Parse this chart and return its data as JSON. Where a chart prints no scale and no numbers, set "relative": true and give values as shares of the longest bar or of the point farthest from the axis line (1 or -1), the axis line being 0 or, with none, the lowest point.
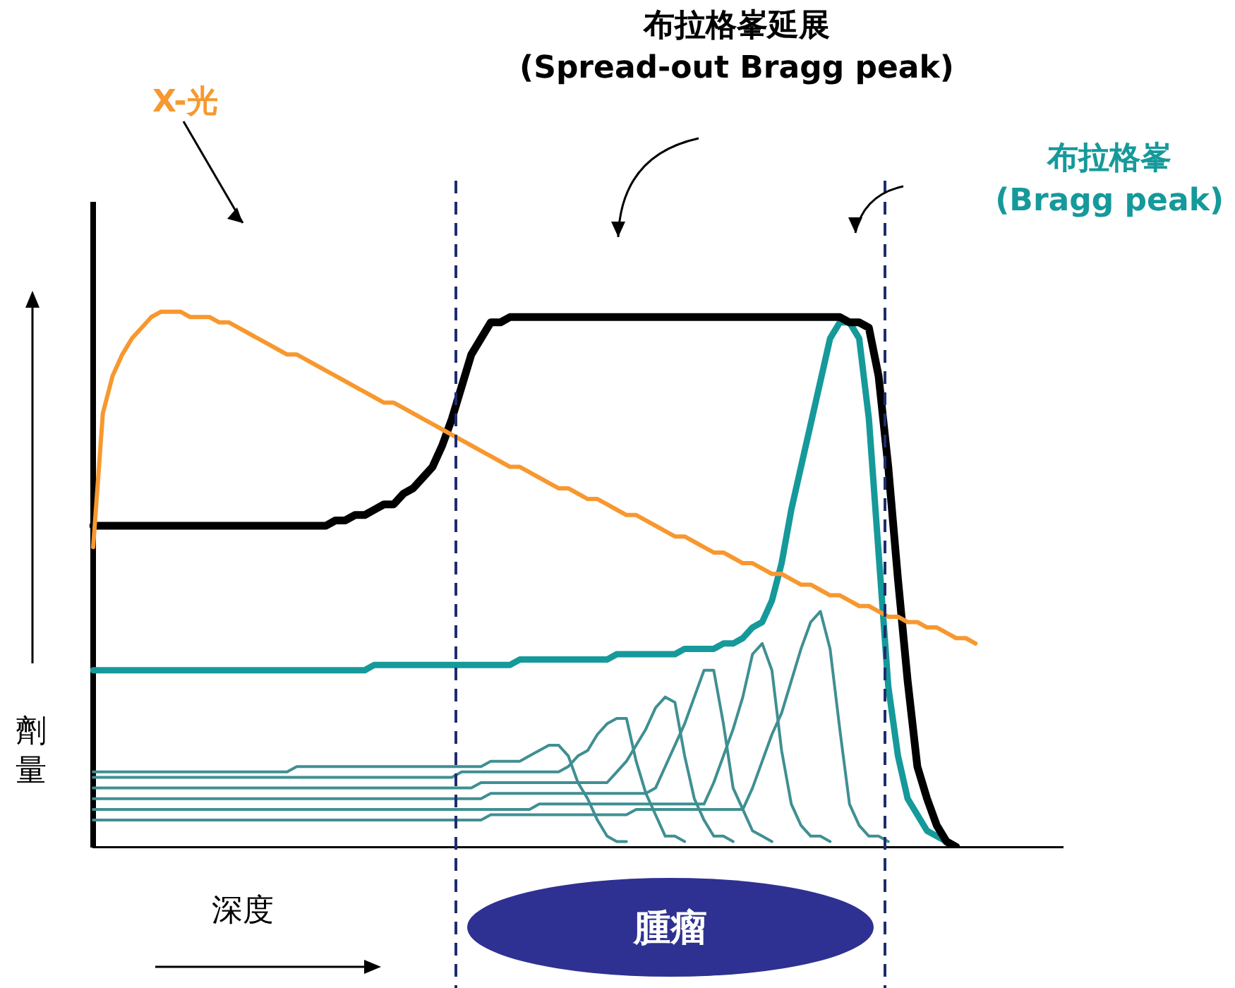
{
  "chart_data": {
    "type": "line",
    "relative": true,
    "xlabel": "深度",
    "ylabel": "劑量",
    "grid": false,
    "legend": false,
    "annotations": [
      "腫瘤"
    ],
    "categories": [
      null,
      null,
      null,
      null,
      null,
      null,
      null,
      null,
      null,
      null,
      null,
      null,
      null,
      null,
      null,
      null,
      null,
      null,
      null,
      null,
      null,
      null,
      null,
      null,
      null,
      null,
      null,
      null,
      null,
      null,
      null,
      null,
      null,
      null,
      null,
      null,
      null,
      null,
      null,
      null,
      null,
      null,
      null,
      null,
      null,
      null,
      null,
      null,
      null,
      null,
      null,
      null,
      null,
      null,
      null,
      null,
      null,
      null,
      null,
      null,
      null,
      null,
      null,
      null,
      null,
      null,
      null,
      null,
      null,
      null,
      null,
      null,
      null,
      null,
      null,
      null,
      null,
      null,
      null,
      null,
      null,
      null,
      null,
      null,
      null,
      null,
      null,
      null,
      null,
      null,
      null,
      null,
      null,
      null,
      null,
      null,
      null,
      null,
      null,
      null,
      null
    ],
    "series": [
      {
        "name": "X-光",
        "color": "#f7982f",
        "values": [
          0.56,
          0.81,
          0.88,
          0.92,
          0.95,
          0.97,
          0.99,
          1,
          1,
          1,
          0.99,
          0.99,
          0.99,
          0.98,
          0.98,
          0.97,
          0.96,
          0.95,
          0.94,
          0.93,
          0.92,
          0.92,
          0.91,
          0.9,
          0.89,
          0.88,
          0.87,
          0.86,
          0.85,
          0.84,
          0.83,
          0.83,
          0.82,
          0.81,
          0.8,
          0.79,
          0.78,
          0.77,
          0.76,
          0.75,
          0.74,
          0.73,
          0.72,
          0.71,
          0.71,
          0.7,
          0.69,
          0.68,
          0.67,
          0.67,
          0.66,
          0.65,
          0.65,
          0.64,
          0.63,
          0.62,
          0.62,
          0.61,
          0.6,
          0.59,
          0.58,
          0.58,
          0.57,
          0.56,
          0.55,
          0.55,
          0.54,
          0.53,
          0.53,
          0.52,
          0.51,
          0.51,
          0.5,
          0.49,
          0.49,
          0.48,
          0.47,
          0.47,
          0.46,
          0.45,
          0.45,
          0.44,
          0.43,
          0.43,
          0.42,
          0.42,
          0.41,
          0.41,
          0.4,
          0.39,
          0.39,
          0.38,
          null,
          null,
          null,
          null,
          null,
          null,
          null,
          null,
          null
        ]
      },
      {
        "name": "布拉格峯延展\n(Spread-out Bragg peak)",
        "color": "#000000",
        "values": [
          0.6,
          0.6,
          0.6,
          0.6,
          0.6,
          0.6,
          0.6,
          0.6,
          0.6,
          0.6,
          0.6,
          0.6,
          0.6,
          0.6,
          0.6,
          0.6,
          0.6,
          0.6,
          0.6,
          0.6,
          0.6,
          0.6,
          0.6,
          0.6,
          0.6,
          0.61,
          0.61,
          0.62,
          0.62,
          0.63,
          0.64,
          0.64,
          0.66,
          0.67,
          0.69,
          0.71,
          0.75,
          0.8,
          0.86,
          0.92,
          0.95,
          0.98,
          0.98,
          0.99,
          0.99,
          0.99,
          0.99,
          0.99,
          0.99,
          0.99,
          0.99,
          0.99,
          0.99,
          0.99,
          0.99,
          0.99,
          0.99,
          0.99,
          0.99,
          0.99,
          0.99,
          0.99,
          0.99,
          0.99,
          0.99,
          0.99,
          0.99,
          0.99,
          0.99,
          0.99,
          0.99,
          0.99,
          0.99,
          0.99,
          0.99,
          0.99,
          0.99,
          0.99,
          0.98,
          0.98,
          0.97,
          0.88,
          0.71,
          0.5,
          0.31,
          0.15,
          0.09,
          0.04,
          0.01,
          0,
          null,
          null,
          null,
          null,
          null,
          null,
          null,
          null,
          null,
          null,
          null
        ]
      },
      {
        "name": "布拉格峯\n(Bragg peak)",
        "color": "#16999a",
        "values": [
          0.33,
          0.33,
          0.33,
          0.33,
          0.33,
          0.33,
          0.33,
          0.33,
          0.33,
          0.33,
          0.33,
          0.33,
          0.33,
          0.33,
          0.33,
          0.33,
          0.33,
          0.33,
          0.33,
          0.33,
          0.33,
          0.33,
          0.33,
          0.33,
          0.33,
          0.33,
          0.33,
          0.33,
          0.33,
          0.34,
          0.34,
          0.34,
          0.34,
          0.34,
          0.34,
          0.34,
          0.34,
          0.34,
          0.34,
          0.34,
          0.34,
          0.34,
          0.34,
          0.34,
          0.35,
          0.35,
          0.35,
          0.35,
          0.35,
          0.35,
          0.35,
          0.35,
          0.35,
          0.35,
          0.36,
          0.36,
          0.36,
          0.36,
          0.36,
          0.36,
          0.36,
          0.37,
          0.37,
          0.37,
          0.37,
          0.38,
          0.38,
          0.39,
          0.41,
          0.42,
          0.46,
          0.53,
          0.63,
          0.71,
          0.79,
          0.87,
          0.95,
          0.98,
          0.98,
          0.95,
          0.8,
          0.55,
          0.3,
          0.17,
          0.09,
          0.06,
          0.03,
          0.02,
          0.01,
          null,
          null,
          null,
          null,
          null,
          null,
          null,
          null,
          null,
          null,
          null,
          null
        ]
      },
      {
        "color": "#3f8f92",
        "values": [
          0.14,
          0.14,
          0.14,
          0.14,
          0.14,
          0.14,
          0.14,
          0.14,
          0.14,
          0.14,
          0.14,
          0.14,
          0.14,
          0.14,
          0.14,
          0.14,
          0.14,
          0.14,
          0.14,
          0.14,
          0.14,
          0.15,
          0.15,
          0.15,
          0.15,
          0.15,
          0.15,
          0.15,
          0.15,
          0.15,
          0.15,
          0.15,
          0.15,
          0.15,
          0.15,
          0.15,
          0.15,
          0.15,
          0.15,
          0.15,
          0.15,
          0.16,
          0.16,
          0.16,
          0.16,
          0.17,
          0.18,
          0.19,
          0.19,
          0.17,
          0.12,
          0.09,
          0.05,
          0.02,
          0.01,
          0.01,
          null,
          null,
          null,
          null,
          null,
          null,
          null,
          null,
          null,
          null,
          null,
          null,
          null,
          null,
          null,
          null,
          null,
          null,
          null,
          null,
          null,
          null,
          null,
          null,
          null,
          null,
          null,
          null,
          null,
          null,
          null,
          null,
          null,
          null,
          null,
          null,
          null,
          null,
          null,
          null,
          null,
          null,
          null,
          null,
          null
        ]
      },
      {
        "color": "#3f8f92",
        "values": [
          0.13,
          0.13,
          0.13,
          0.13,
          0.13,
          0.13,
          0.13,
          0.13,
          0.13,
          0.13,
          0.13,
          0.13,
          0.13,
          0.13,
          0.13,
          0.13,
          0.13,
          0.13,
          0.13,
          0.13,
          0.13,
          0.13,
          0.13,
          0.13,
          0.13,
          0.13,
          0.13,
          0.13,
          0.13,
          0.13,
          0.13,
          0.13,
          0.13,
          0.13,
          0.13,
          0.13,
          0.13,
          0.13,
          0.14,
          0.14,
          0.14,
          0.14,
          0.14,
          0.14,
          0.14,
          0.14,
          0.14,
          0.14,
          0.14,
          0.15,
          0.17,
          0.18,
          0.21,
          0.23,
          0.24,
          0.24,
          0.16,
          0.1,
          0.06,
          0.02,
          0.02,
          0.01,
          null,
          null,
          null,
          null,
          null,
          null,
          null,
          null,
          null,
          null,
          null,
          null,
          null,
          null,
          null,
          null,
          null,
          null,
          null,
          null,
          null,
          null,
          null,
          null,
          null,
          null,
          null,
          null,
          null,
          null,
          null,
          null,
          null,
          null,
          null,
          null,
          null,
          null,
          null
        ]
      },
      {
        "color": "#3f8f92",
        "values": [
          0.11,
          0.11,
          0.11,
          0.11,
          0.11,
          0.11,
          0.11,
          0.11,
          0.11,
          0.11,
          0.11,
          0.11,
          0.11,
          0.11,
          0.11,
          0.11,
          0.11,
          0.11,
          0.11,
          0.11,
          0.11,
          0.11,
          0.11,
          0.11,
          0.11,
          0.11,
          0.11,
          0.11,
          0.11,
          0.11,
          0.11,
          0.11,
          0.11,
          0.11,
          0.11,
          0.11,
          0.11,
          0.11,
          0.11,
          0.11,
          0.12,
          0.12,
          0.12,
          0.12,
          0.12,
          0.12,
          0.12,
          0.12,
          0.12,
          0.12,
          0.12,
          0.12,
          0.12,
          0.12,
          0.14,
          0.16,
          0.19,
          0.22,
          0.26,
          0.28,
          0.27,
          0.17,
          0.09,
          0.05,
          0.02,
          0.02,
          0.01,
          null,
          null,
          null,
          null,
          null,
          null,
          null,
          null,
          null,
          null,
          null,
          null,
          null,
          null,
          null,
          null,
          null,
          null,
          null,
          null,
          null,
          null,
          null,
          null,
          null,
          null,
          null,
          null,
          null,
          null,
          null,
          null,
          null,
          null
        ]
      },
      {
        "color": "#3f8f92",
        "values": [
          0.09,
          0.09,
          0.09,
          0.09,
          0.09,
          0.09,
          0.09,
          0.09,
          0.09,
          0.09,
          0.09,
          0.09,
          0.09,
          0.09,
          0.09,
          0.09,
          0.09,
          0.09,
          0.09,
          0.09,
          0.09,
          0.09,
          0.09,
          0.09,
          0.09,
          0.09,
          0.09,
          0.09,
          0.09,
          0.09,
          0.09,
          0.09,
          0.09,
          0.09,
          0.09,
          0.09,
          0.09,
          0.09,
          0.09,
          0.09,
          0.09,
          0.1,
          0.1,
          0.1,
          0.1,
          0.1,
          0.1,
          0.1,
          0.1,
          0.1,
          0.1,
          0.1,
          0.1,
          0.1,
          0.1,
          0.1,
          0.1,
          0.1,
          0.11,
          0.15,
          0.19,
          0.23,
          0.28,
          0.33,
          0.33,
          0.23,
          0.11,
          0.07,
          0.03,
          0.02,
          0.01,
          null,
          null,
          null,
          null,
          null,
          null,
          null,
          null,
          null,
          null,
          null,
          null,
          null,
          null,
          null,
          null,
          null,
          null,
          null,
          null,
          null,
          null,
          null,
          null,
          null,
          null,
          null,
          null,
          null,
          null
        ]
      },
      {
        "color": "#3f8f92",
        "values": [
          0.07,
          0.07,
          0.07,
          0.07,
          0.07,
          0.07,
          0.07,
          0.07,
          0.07,
          0.07,
          0.07,
          0.07,
          0.07,
          0.07,
          0.07,
          0.07,
          0.07,
          0.07,
          0.07,
          0.07,
          0.07,
          0.07,
          0.07,
          0.07,
          0.07,
          0.07,
          0.07,
          0.07,
          0.07,
          0.07,
          0.07,
          0.07,
          0.07,
          0.07,
          0.07,
          0.07,
          0.07,
          0.07,
          0.07,
          0.07,
          0.07,
          0.07,
          0.07,
          0.07,
          0.07,
          0.07,
          0.08,
          0.08,
          0.08,
          0.08,
          0.08,
          0.08,
          0.08,
          0.08,
          0.08,
          0.08,
          0.08,
          0.08,
          0.08,
          0.08,
          0.08,
          0.08,
          0.08,
          0.08,
          0.12,
          0.17,
          0.22,
          0.28,
          0.36,
          0.38,
          0.33,
          0.18,
          0.08,
          0.04,
          0.02,
          0.02,
          0.01,
          null,
          null,
          null,
          null,
          null,
          null,
          null,
          null,
          null,
          null,
          null,
          null,
          null,
          null,
          null,
          null,
          null,
          null,
          null,
          null,
          null,
          null,
          null,
          null
        ]
      },
      {
        "color": "#3f8f92",
        "values": [
          0.05,
          0.05,
          0.05,
          0.05,
          0.05,
          0.05,
          0.05,
          0.05,
          0.05,
          0.05,
          0.05,
          0.05,
          0.05,
          0.05,
          0.05,
          0.05,
          0.05,
          0.05,
          0.05,
          0.05,
          0.05,
          0.05,
          0.05,
          0.05,
          0.05,
          0.05,
          0.05,
          0.05,
          0.05,
          0.05,
          0.05,
          0.05,
          0.05,
          0.05,
          0.05,
          0.05,
          0.05,
          0.05,
          0.05,
          0.05,
          0.05,
          0.06,
          0.06,
          0.06,
          0.06,
          0.06,
          0.06,
          0.06,
          0.06,
          0.06,
          0.06,
          0.06,
          0.06,
          0.06,
          0.06,
          0.06,
          0.07,
          0.07,
          0.07,
          0.07,
          0.07,
          0.07,
          0.07,
          0.07,
          0.07,
          0.07,
          0.07,
          0.07,
          0.11,
          0.16,
          0.21,
          0.25,
          0.31,
          0.37,
          0.42,
          0.44,
          0.37,
          0.22,
          0.08,
          0.04,
          0.02,
          0.02,
          0.01,
          null,
          null,
          null,
          null,
          null,
          null,
          null,
          null,
          null,
          null,
          null,
          null,
          null,
          null,
          null,
          null,
          null,
          null
        ]
      }
    ]
  }
}
